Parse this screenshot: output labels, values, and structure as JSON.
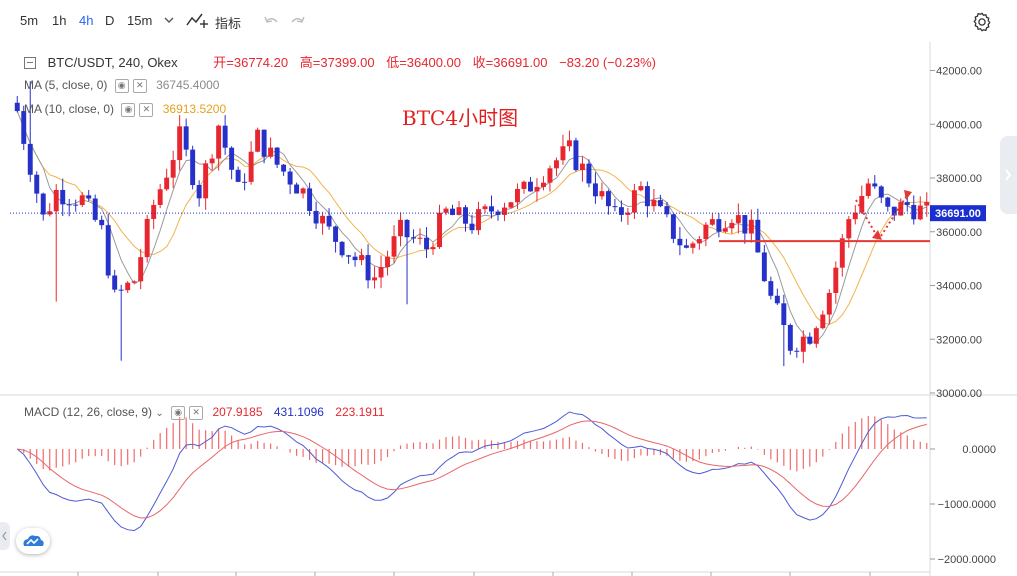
{
  "toolbar": {
    "timeframes": [
      "5m",
      "1h",
      "4h",
      "D",
      "15m"
    ],
    "active_timeframe": "4h",
    "indicators_label": "指标"
  },
  "legend": {
    "symbol": "BTC/USDT, 240, Okex",
    "open": "开=36774.20",
    "high": "高=37399.00",
    "low": "低=36400.00",
    "close": "收=36691.00",
    "change": "−83.20 (−0.23%)",
    "ma5": {
      "label": "MA (5, close, 0)",
      "value": "36745.4000"
    },
    "ma10": {
      "label": "MA (10, close, 0)",
      "value": "36913.5200"
    }
  },
  "annotation": "BTC4小时图",
  "price_axis": {
    "ticks": [
      "42000.00",
      "40000.00",
      "38000.00",
      "36000.00",
      "34000.00",
      "32000.00",
      "30000.00"
    ],
    "current_price": "36691.00"
  },
  "macd": {
    "label": "MACD (12, 26, close, 9)",
    "histogram": "207.9185",
    "macd": "431.1096",
    "signal": "223.1911",
    "ticks": [
      "0.0000",
      "−1000.0000",
      "−2000.0000"
    ]
  },
  "colors": {
    "up": "#e8262f",
    "down": "#2531c9",
    "ma5": "#9b9b9b",
    "ma10": "#f0b44c",
    "macd_line": "#4d5bd6",
    "signal_line": "#e8656a",
    "support": "#e53935"
  }
}
